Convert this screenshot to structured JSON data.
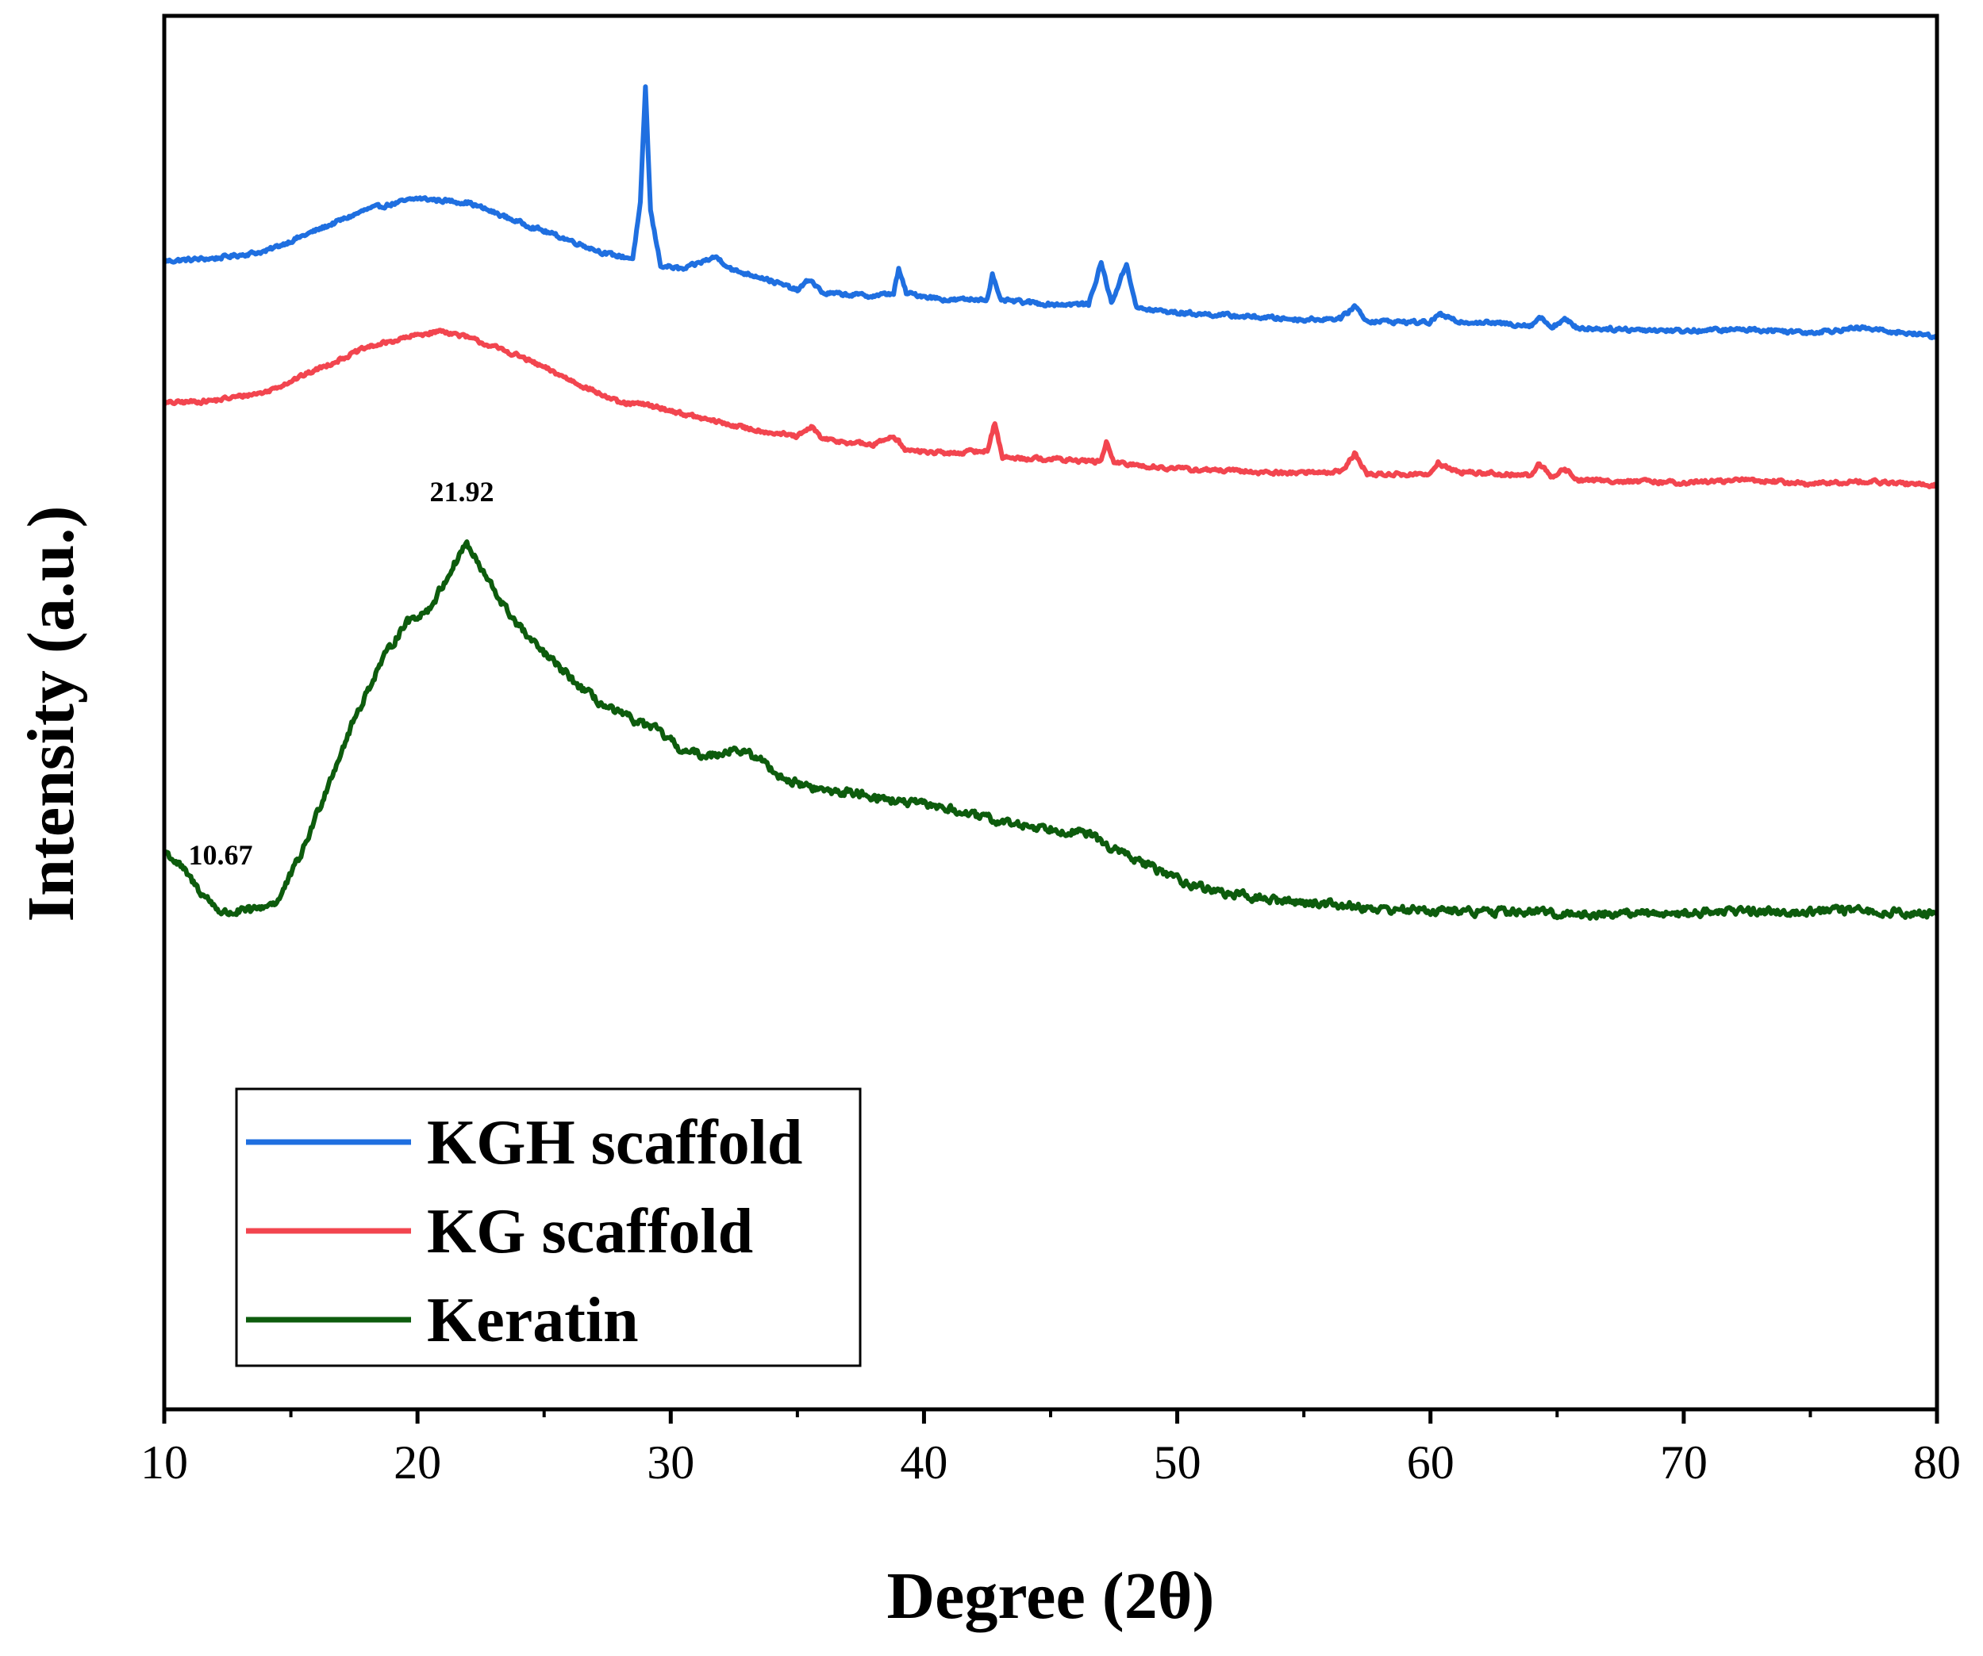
{
  "chart_data": {
    "type": "line",
    "title": "",
    "xlabel": "Degree (2θ)",
    "ylabel": "Intensity (a.u.)",
    "xlim": [
      10,
      80
    ],
    "ylim": [
      0,
      100
    ],
    "xticks": [
      10,
      20,
      30,
      40,
      50,
      60,
      70,
      80
    ],
    "yticks_shown": false,
    "grid": false,
    "legend_position": "bottom-left",
    "series": [
      {
        "name": "KGH scaffold",
        "color": "#1f6fe0",
        "points": [
          [
            10,
            82.4
          ],
          [
            12,
            82.6
          ],
          [
            14,
            83.1
          ],
          [
            16,
            84.6
          ],
          [
            18,
            86.1
          ],
          [
            20,
            86.9
          ],
          [
            22,
            86.6
          ],
          [
            24,
            85.2
          ],
          [
            26,
            83.9
          ],
          [
            27.5,
            82.9
          ],
          [
            28.5,
            82.6
          ],
          [
            28.8,
            86.5
          ],
          [
            29.0,
            94.9
          ],
          [
            29.2,
            86.0
          ],
          [
            29.6,
            82.1
          ],
          [
            30.5,
            81.8
          ],
          [
            31.3,
            82.4
          ],
          [
            31.8,
            82.7
          ],
          [
            32.5,
            81.7
          ],
          [
            33.5,
            81.3
          ],
          [
            35,
            80.3
          ],
          [
            35.5,
            81.1
          ],
          [
            36,
            80.1
          ],
          [
            38,
            79.9
          ],
          [
            38.8,
            80.1
          ],
          [
            39.0,
            81.8
          ],
          [
            39.3,
            80.1
          ],
          [
            41,
            79.6
          ],
          [
            42.5,
            79.7
          ],
          [
            42.7,
            81.4
          ],
          [
            43.0,
            79.6
          ],
          [
            45,
            79.3
          ],
          [
            46.5,
            79.3
          ],
          [
            47.0,
            82.3
          ],
          [
            47.4,
            79.4
          ],
          [
            48.0,
            82.2
          ],
          [
            48.4,
            79.0
          ],
          [
            50,
            78.7
          ],
          [
            52,
            78.5
          ],
          [
            55,
            78.2
          ],
          [
            56.5,
            78.3
          ],
          [
            57.0,
            79.2
          ],
          [
            57.5,
            78.1
          ],
          [
            60,
            78.0
          ],
          [
            60.3,
            78.6
          ],
          [
            61,
            78.1
          ],
          [
            64,
            77.8
          ],
          [
            64.3,
            78.4
          ],
          [
            64.8,
            77.7
          ],
          [
            65.3,
            78.2
          ],
          [
            65.8,
            77.6
          ],
          [
            70,
            77.4
          ],
          [
            72.6,
            77.5
          ],
          [
            75,
            77.3
          ],
          [
            77,
            77.6
          ],
          [
            80,
            77.0
          ]
        ]
      },
      {
        "name": "KG scaffold",
        "color": "#f2454f",
        "points": [
          [
            10,
            72.2
          ],
          [
            12,
            72.4
          ],
          [
            14,
            73.0
          ],
          [
            16,
            74.6
          ],
          [
            18,
            76.2
          ],
          [
            20,
            77.1
          ],
          [
            21,
            77.4
          ],
          [
            22,
            76.9
          ],
          [
            24,
            75.6
          ],
          [
            26,
            73.9
          ],
          [
            28,
            72.2
          ],
          [
            29,
            72.1
          ],
          [
            29.5,
            71.9
          ],
          [
            31,
            71.2
          ],
          [
            33,
            70.4
          ],
          [
            35,
            69.8
          ],
          [
            35.6,
            70.5
          ],
          [
            36,
            69.6
          ],
          [
            38,
            69.2
          ],
          [
            38.8,
            69.9
          ],
          [
            39.3,
            68.8
          ],
          [
            41,
            68.6
          ],
          [
            42.5,
            68.8
          ],
          [
            42.8,
            70.8
          ],
          [
            43.1,
            68.3
          ],
          [
            45,
            68.2
          ],
          [
            47,
            68.0
          ],
          [
            47.2,
            69.5
          ],
          [
            47.5,
            67.9
          ],
          [
            50,
            67.5
          ],
          [
            54,
            67.2
          ],
          [
            56.5,
            67.3
          ],
          [
            57.0,
            68.6
          ],
          [
            57.5,
            67.1
          ],
          [
            60,
            67.1
          ],
          [
            60.3,
            67.9
          ],
          [
            61,
            67.3
          ],
          [
            64,
            67.0
          ],
          [
            64.3,
            67.9
          ],
          [
            64.8,
            66.9
          ],
          [
            65.3,
            67.5
          ],
          [
            65.8,
            66.7
          ],
          [
            70,
            66.5
          ],
          [
            72.6,
            66.7
          ],
          [
            75,
            66.4
          ],
          [
            77,
            66.6
          ],
          [
            80,
            66.3
          ]
        ]
      },
      {
        "name": "Keratin",
        "color": "#0d5c0d",
        "points": [
          [
            10,
            40.1
          ],
          [
            10.67,
            38.9
          ],
          [
            11.5,
            37.0
          ],
          [
            12.3,
            35.6
          ],
          [
            13.5,
            35.8
          ],
          [
            14.5,
            36.5
          ],
          [
            15.5,
            40.2
          ],
          [
            16.5,
            45.0
          ],
          [
            17.5,
            49.5
          ],
          [
            18.5,
            53.4
          ],
          [
            19.5,
            56.4
          ],
          [
            20.5,
            57.5
          ],
          [
            21.5,
            60.8
          ],
          [
            21.92,
            62.2
          ],
          [
            22.5,
            60.3
          ],
          [
            23.5,
            57.4
          ],
          [
            24.5,
            55.1
          ],
          [
            25.5,
            53.4
          ],
          [
            26.5,
            51.7
          ],
          [
            27.5,
            50.3
          ],
          [
            28.5,
            49.5
          ],
          [
            29.5,
            48.7
          ],
          [
            30.5,
            47.2
          ],
          [
            31.5,
            46.9
          ],
          [
            32.5,
            47.4
          ],
          [
            33.5,
            46.7
          ],
          [
            34.5,
            45.2
          ],
          [
            36,
            44.4
          ],
          [
            37.5,
            44.2
          ],
          [
            39,
            43.6
          ],
          [
            40.5,
            43.3
          ],
          [
            42,
            42.6
          ],
          [
            43.5,
            42.0
          ],
          [
            45,
            41.7
          ],
          [
            46.5,
            41.3
          ],
          [
            47.5,
            40.2
          ],
          [
            49,
            38.9
          ],
          [
            50.5,
            37.7
          ],
          [
            52,
            37.0
          ],
          [
            54,
            36.5
          ],
          [
            56,
            36.3
          ],
          [
            58,
            35.9
          ],
          [
            60,
            35.8
          ],
          [
            62,
            35.7
          ],
          [
            64,
            35.7
          ],
          [
            66,
            35.5
          ],
          [
            68,
            35.6
          ],
          [
            70,
            35.6
          ],
          [
            72,
            35.8
          ],
          [
            74,
            35.7
          ],
          [
            76,
            35.8
          ],
          [
            78,
            35.7
          ],
          [
            80,
            35.5
          ]
        ]
      }
    ],
    "annotations": [
      {
        "text": "21.92",
        "x": 21.92,
        "y": 62.2
      },
      {
        "text": "10.67",
        "x": 10.67,
        "y": 38.9
      }
    ]
  }
}
